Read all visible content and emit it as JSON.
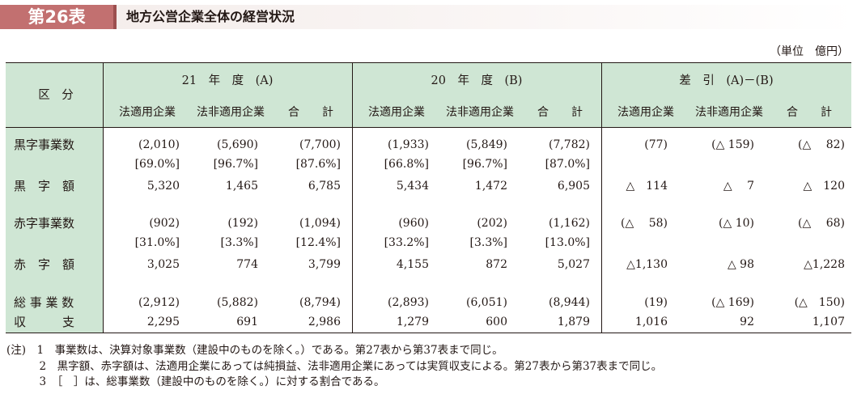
{
  "title": {
    "number": "第26表",
    "text": "地方公営企業全体の経営状況"
  },
  "unit": "（単位　億円）",
  "header": {
    "row_label": "区　分",
    "groups": [
      "21　年　度　(A)",
      "20　年　度　(B)",
      "差　引　(A)－(B)"
    ],
    "subcolumns": [
      "法適用企業",
      "法非適用企業",
      "合　　計"
    ]
  },
  "rows": [
    {
      "label": "黒字事業数",
      "cells": [
        "(2,010)",
        "(5,690)",
        "(7,700)",
        "(1,933)",
        "(5,849)",
        "(7,782)",
        "(77)",
        "(△ 159)",
        "(△　 82)"
      ]
    },
    {
      "label": "",
      "cells": [
        "[69.0%]",
        "[96.7%]",
        "[87.6%]",
        "[66.8%]",
        "[96.7%]",
        "[87.0%]",
        "",
        "",
        ""
      ]
    },
    {
      "label": "黒　字　額",
      "cells": [
        "5,320",
        "1,465",
        "6,785",
        "5,434",
        "1,472",
        "6,905",
        "△　114",
        "△　 7",
        "△　120"
      ]
    },
    {
      "label": "赤字事業数",
      "cells": [
        "(902)",
        "(192)",
        "(1,094)",
        "(960)",
        "(202)",
        "(1,162)",
        "(△　 58)",
        "(△ 10)",
        "(△　 68)"
      ]
    },
    {
      "label": "",
      "cells": [
        "[31.0%]",
        "[3.3%]",
        "[12.4%]",
        "[33.2%]",
        "[3.3%]",
        "[13.0%]",
        "",
        "",
        ""
      ]
    },
    {
      "label": "赤　字　額",
      "cells": [
        "3,025",
        "774",
        "3,799",
        "4,155",
        "872",
        "5,027",
        "△1,130",
        "△ 98",
        "△1,228"
      ]
    },
    {
      "label": "総 事 業 数",
      "cells": [
        "(2,912)",
        "(5,882)",
        "(8,794)",
        "(2,893)",
        "(6,051)",
        "(8,944)",
        "(19)",
        "(△ 169)",
        "(△　150)"
      ]
    },
    {
      "label": "収　　　支",
      "cells": [
        "2,295",
        "691",
        "2,986",
        "1,279",
        "600",
        "1,879",
        "1,016",
        "92",
        "1,107"
      ]
    }
  ],
  "notes": [
    "(注)　1　事業数は、決算対象事業数（建設中のものを除く。）である。第27表から第37表まで同じ。",
    "　　　2　黒字額、赤字額は、法適用企業にあっては純損益、法非適用企業にあっては実質収支による。第27表から第37表まで同じ。",
    "　　　3　［　］は、総事業数（建設中のものを除く。）に対する割合である。"
  ]
}
